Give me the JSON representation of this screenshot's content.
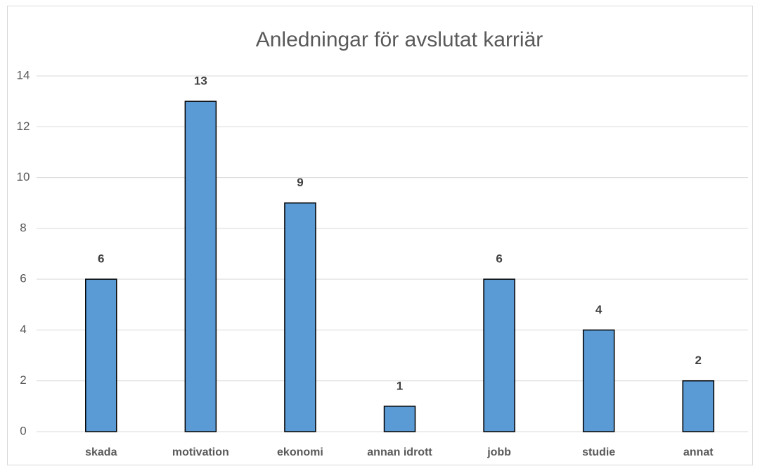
{
  "chart_data": {
    "type": "bar",
    "title": "Anledningar för avslutat karriär",
    "categories": [
      "skada",
      "motivation",
      "ekonomi",
      "annan idrott",
      "jobb",
      "studie",
      "annat"
    ],
    "values": [
      6,
      13,
      9,
      1,
      6,
      4,
      2
    ],
    "color": "#5b9bd5",
    "ylim": [
      0,
      14
    ],
    "yticks": [
      0,
      2,
      4,
      6,
      8,
      10,
      12,
      14
    ],
    "grid": true
  }
}
